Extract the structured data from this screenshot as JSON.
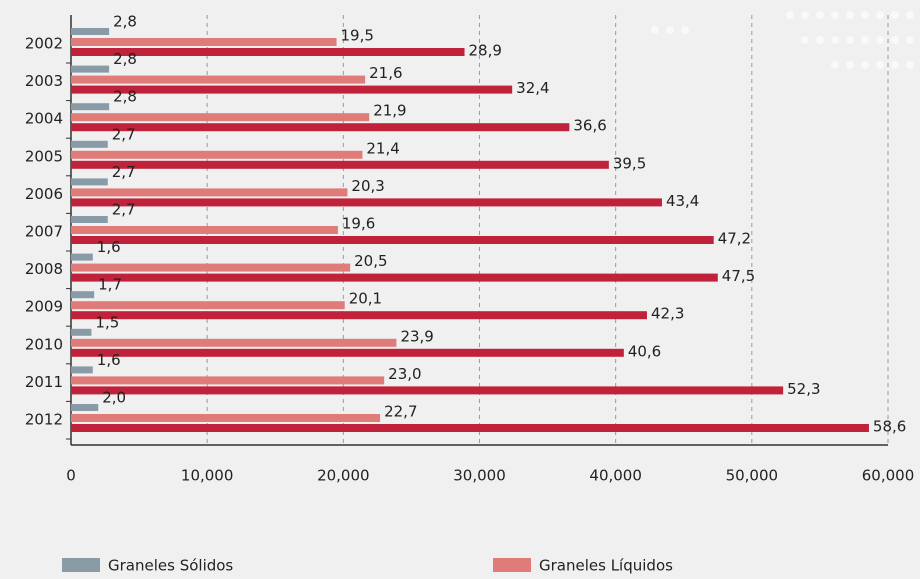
{
  "chart_data": {
    "type": "bar",
    "orientation": "horizontal",
    "categories": [
      "2002",
      "2003",
      "2004",
      "2005",
      "2006",
      "2007",
      "2008",
      "2009",
      "2010",
      "2011",
      "2012"
    ],
    "series": [
      {
        "name": "Graneles Sólidos",
        "color": "#8a9ba8",
        "values": [
          2800,
          2800,
          2800,
          2700,
          2700,
          2700,
          1600,
          1700,
          1500,
          1600,
          2000
        ],
        "value_labels": [
          "2,8",
          "2,8",
          "2,8",
          "2,7",
          "2,7",
          "2,7",
          "1,6",
          "1,7",
          "1,5",
          "1,6",
          "2,0"
        ]
      },
      {
        "name": "Graneles Líquidos",
        "color": "#df7b78",
        "values": [
          19500,
          21600,
          21900,
          21400,
          20300,
          19600,
          20500,
          20100,
          23900,
          23000,
          22700
        ],
        "value_labels": [
          "19,5",
          "21,6",
          "21,9",
          "21,4",
          "20,3",
          "19,6",
          "20,5",
          "20,1",
          "23,9",
          "23,0",
          "22,7"
        ]
      },
      {
        "color": "#c0213b",
        "values": [
          28900,
          32400,
          36600,
          39500,
          43400,
          47200,
          47500,
          42300,
          40600,
          52300,
          58600
        ],
        "value_labels": [
          "28,9",
          "32,4",
          "36,6",
          "39,5",
          "43,4",
          "47,2",
          "47,5",
          "42,3",
          "40,6",
          "52,3",
          "58,6"
        ]
      }
    ],
    "xlim": [
      0,
      60000
    ],
    "xticks": [
      0,
      {
        "value": 10000,
        "label": "10,000"
      },
      {
        "value": 20000,
        "label": "20,000"
      },
      {
        "value": 30000,
        "label": "30,000"
      },
      {
        "value": 40000,
        "label": "40,000"
      },
      {
        "value": 50000,
        "label": "50,000"
      },
      {
        "value": 60000,
        "label": "60,000"
      }
    ],
    "grid": true
  }
}
